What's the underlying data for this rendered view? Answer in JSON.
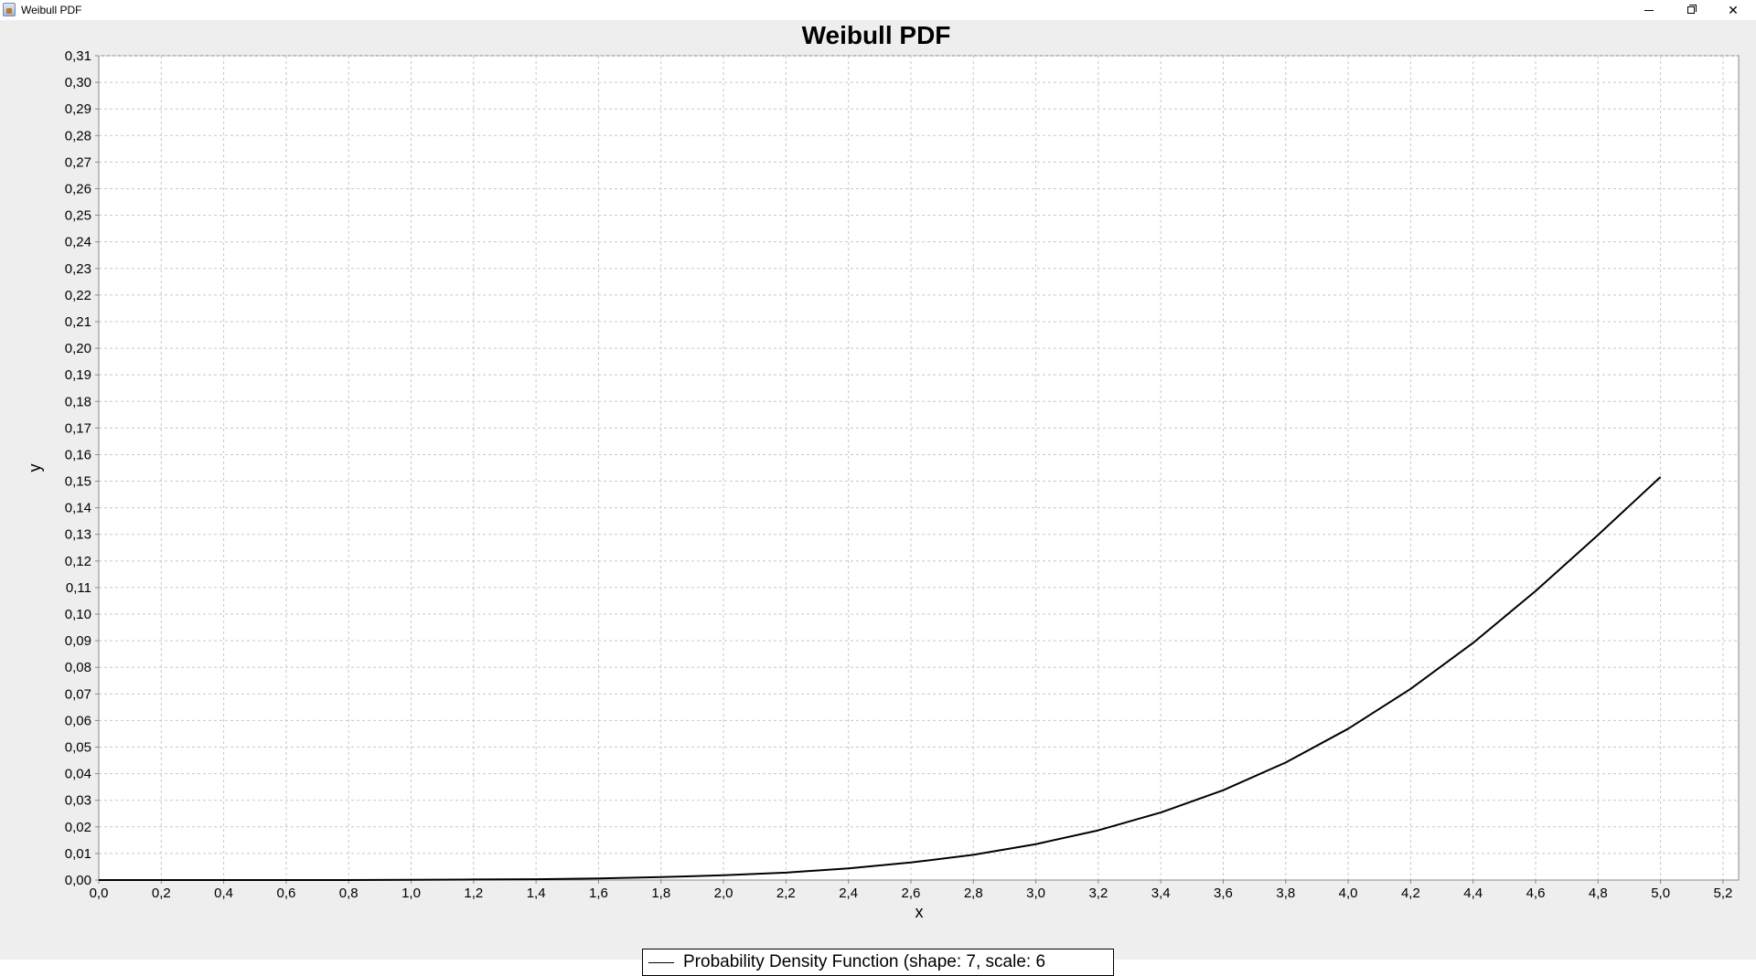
{
  "window": {
    "title": "Weibull PDF"
  },
  "colors": {
    "panel_background": "#eeeeee",
    "plot_background": "#ffffff",
    "gridline": "#c8c8c8",
    "series_line": "#000000"
  },
  "chart_data": {
    "type": "line",
    "title": "Weibull PDF",
    "xlabel": "x",
    "ylabel": "y",
    "xlim": [
      0.0,
      5.25
    ],
    "ylim": [
      0.0,
      0.31
    ],
    "grid": true,
    "legend_position": "bottom",
    "x_ticks": [
      "0,0",
      "0,2",
      "0,4",
      "0,6",
      "0,8",
      "1,0",
      "1,2",
      "1,4",
      "1,6",
      "1,8",
      "2,0",
      "2,2",
      "2,4",
      "2,6",
      "2,8",
      "3,0",
      "3,2",
      "3,4",
      "3,6",
      "3,8",
      "4,0",
      "4,2",
      "4,4",
      "4,6",
      "4,8",
      "5,0",
      "5,2"
    ],
    "y_ticks": [
      "0,00",
      "0,01",
      "0,02",
      "0,03",
      "0,04",
      "0,05",
      "0,06",
      "0,07",
      "0,08",
      "0,09",
      "0,10",
      "0,11",
      "0,12",
      "0,13",
      "0,14",
      "0,15",
      "0,16",
      "0,17",
      "0,18",
      "0,19",
      "0,20",
      "0,21",
      "0,22",
      "0,23",
      "0,24",
      "0,25",
      "0,26",
      "0,27",
      "0,28",
      "0,29",
      "0,30",
      "0,31"
    ],
    "series": [
      {
        "name": "Probability Density Function (shape: 7, scale: 6",
        "x": [
          0.0,
          0.2,
          0.4,
          0.6,
          0.8,
          1.0,
          1.2,
          1.4,
          1.6,
          1.8,
          2.0,
          2.2,
          2.4,
          2.6,
          2.8,
          3.0,
          3.2,
          3.4,
          3.6,
          3.8,
          4.0,
          4.2,
          4.4,
          4.6,
          4.8,
          5.0
        ],
        "values": [
          0.0,
          0.0,
          0.0,
          0.0,
          0.0,
          0.0001,
          0.0002,
          0.0003,
          0.0006,
          0.0011,
          0.0018,
          0.0028,
          0.0044,
          0.0066,
          0.0095,
          0.0135,
          0.0187,
          0.0254,
          0.0338,
          0.0442,
          0.0569,
          0.0719,
          0.0892,
          0.1087,
          0.1298,
          0.1516
        ]
      }
    ]
  }
}
